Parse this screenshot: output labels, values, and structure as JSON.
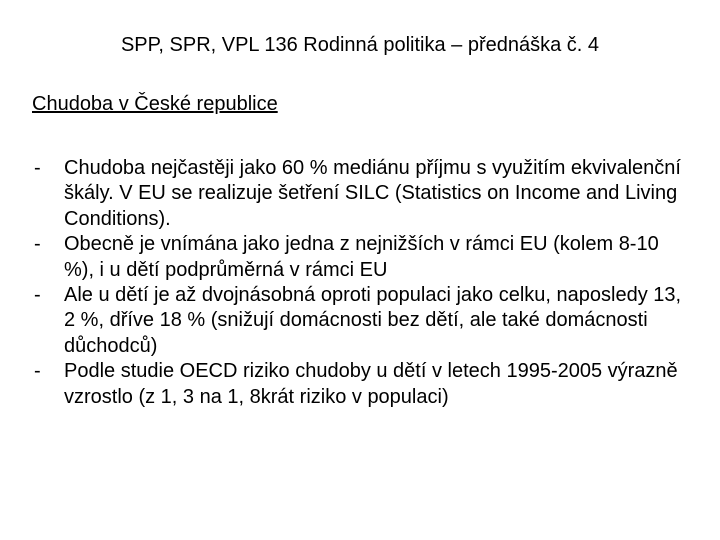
{
  "title": "SPP, SPR, VPL 136 Rodinná politika – přednáška č. 4",
  "subtitle": "Chudoba v České republice",
  "bullets": [
    "Chudoba nejčastěji jako 60 % mediánu příjmu s využitím ekvivalenční škály. V EU se realizuje šetření SILC (Statistics on Income and Living Conditions).",
    "Obecně je vnímána jako jedna z nejnižších v rámci EU (kolem 8-10 %), i u dětí podprůměrná v rámci EU",
    "Ale u dětí je až dvojnásobná oproti populaci jako celku, naposledy 13, 2 %, dříve 18 % (snižují domácnosti bez dětí, ale také domácnosti důchodců)",
    "Podle studie OECD riziko chudoby u dětí v letech 1995-2005 výrazně vzrostlo (z 1, 3 na 1, 8krát riziko v populaci)"
  ],
  "colors": {
    "background": "#ffffff",
    "text": "#000000"
  },
  "typography": {
    "font_family": "Arial",
    "title_fontsize": 20,
    "body_fontsize": 20,
    "line_height": 1.27
  }
}
